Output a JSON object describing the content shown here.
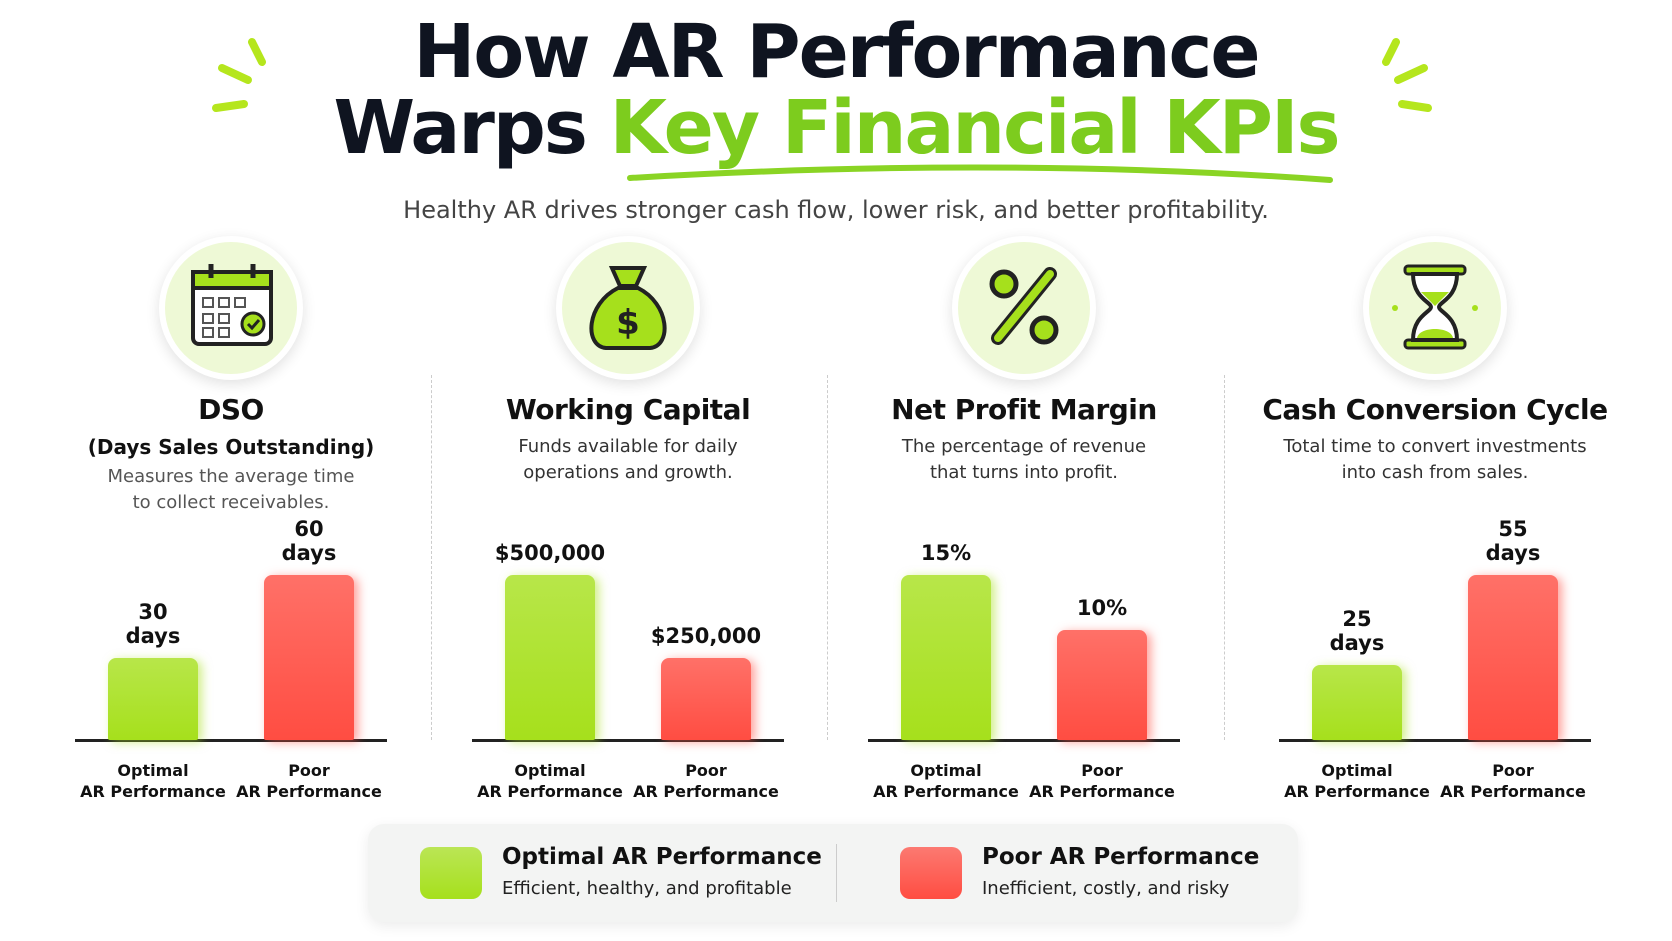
{
  "header": {
    "title_line1": "How AR Performance",
    "title_line2_plain": "Warps",
    "title_line2_highlight": "Key Financial KPIs",
    "subtitle": "Healthy AR drives stronger cash flow, lower risk, and better profitability."
  },
  "chart_data": [
    {
      "type": "bar",
      "title": "DSO",
      "subtitle": "(Days Sales Outstanding)",
      "description": "Measures the average time\nto collect receivables.",
      "categories": [
        "Optimal\nAR Performance",
        "Poor\nAR Performance"
      ],
      "values": [
        30,
        60
      ],
      "value_labels": [
        "30\ndays",
        "60\ndays"
      ],
      "colors": [
        "#a6e01c",
        "#ff4d42"
      ]
    },
    {
      "type": "bar",
      "title": "Working Capital",
      "description": "Funds available for daily\noperations and growth.",
      "categories": [
        "Optimal\nAR Performance",
        "Poor\nAR Performance"
      ],
      "values": [
        500000,
        250000
      ],
      "value_labels": [
        "$500,000",
        "$250,000"
      ],
      "colors": [
        "#a6e01c",
        "#ff4d42"
      ]
    },
    {
      "type": "bar",
      "title": "Net Profit Margin",
      "description": "The percentage of revenue\nthat turns into profit.",
      "categories": [
        "Optimal\nAR Performance",
        "Poor\nAR Performance"
      ],
      "values": [
        15,
        10
      ],
      "value_labels": [
        "15%",
        "10%"
      ],
      "colors": [
        "#a6e01c",
        "#ff4d42"
      ]
    },
    {
      "type": "bar",
      "title": "Cash Conversion Cycle",
      "description": "Total time to convert investments\ninto cash from sales.",
      "categories": [
        "Optimal\nAR Performance",
        "Poor\nAR Performance"
      ],
      "values": [
        25,
        55
      ],
      "value_labels": [
        "25\ndays",
        "55\ndays"
      ],
      "colors": [
        "#a6e01c",
        "#ff4d42"
      ]
    }
  ],
  "legend": [
    {
      "name": "Optimal AR Performance",
      "description": "Efficient, healthy, and profitable",
      "color": "#a6e01c"
    },
    {
      "name": "Poor AR Performance",
      "description": "Inefficient, costly, and risky",
      "color": "#ff4d42"
    }
  ]
}
